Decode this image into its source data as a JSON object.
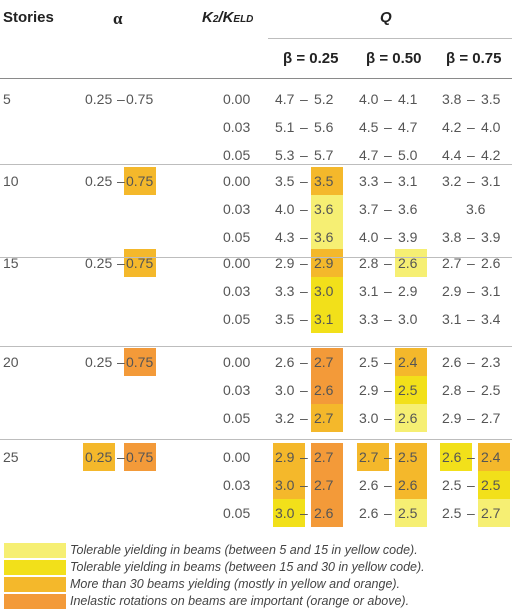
{
  "table": {
    "headers": {
      "stories": "Stories",
      "alpha": "α",
      "k_ratio_main": "K",
      "k_ratio_sub1": "2",
      "k_ratio_sep": "/K",
      "k_ratio_sub2": "ELD",
      "q": "Q",
      "beta1": "β = 0.25",
      "beta2": "β = 0.50",
      "beta3": "β = 0.75"
    },
    "groups": [
      {
        "stories": "5",
        "alpha": {
          "a": "0.25",
          "sep": "–",
          "b": "0.75"
        },
        "rows": [
          {
            "k": "0.00",
            "q": [
              [
                "4.7",
                "–",
                "5.2"
              ],
              [
                "4.0",
                "–",
                "4.1"
              ],
              [
                "3.8",
                "–",
                "3.5"
              ]
            ]
          },
          {
            "k": "0.03",
            "q": [
              [
                "5.1",
                "–",
                "5.6"
              ],
              [
                "4.5",
                "–",
                "4.7"
              ],
              [
                "4.2",
                "–",
                "4.0"
              ]
            ]
          },
          {
            "k": "0.05",
            "q": [
              [
                "5.3",
                "–",
                "5.7"
              ],
              [
                "4.7",
                "–",
                "5.0"
              ],
              [
                "4.4",
                "–",
                "4.2"
              ]
            ]
          }
        ]
      },
      {
        "stories": "10",
        "alpha": {
          "a": "0.25",
          "sep": "–",
          "b": "0.75"
        },
        "rows": [
          {
            "k": "0.00",
            "q": [
              [
                "3.5",
                "–",
                "3.5"
              ],
              [
                "3.3",
                "–",
                "3.1"
              ],
              [
                "3.2",
                "–",
                "3.1"
              ]
            ]
          },
          {
            "k": "0.03",
            "q": [
              [
                "4.0",
                "–",
                "3.6"
              ],
              [
                "3.7",
                "–",
                "3.6"
              ],
              [
                "3.6",
                "",
                ""
              ]
            ]
          },
          {
            "k": "0.05",
            "q": [
              [
                "4.3",
                "–",
                "3.6"
              ],
              [
                "4.0",
                "–",
                "3.9"
              ],
              [
                "3.8",
                "–",
                "3.9"
              ]
            ]
          }
        ]
      },
      {
        "stories": "15",
        "alpha": {
          "a": "0.25",
          "sep": "–",
          "b": "0.75"
        },
        "rows": [
          {
            "k": "0.00",
            "q": [
              [
                "2.9",
                "–",
                "2.9"
              ],
              [
                "2.8",
                "–",
                "2.6"
              ],
              [
                "2.7",
                "–",
                "2.6"
              ]
            ]
          },
          {
            "k": "0.03",
            "q": [
              [
                "3.3",
                "–",
                "3.0"
              ],
              [
                "3.1",
                "–",
                "2.9"
              ],
              [
                "2.9",
                "–",
                "3.1"
              ]
            ]
          },
          {
            "k": "0.05",
            "q": [
              [
                "3.5",
                "–",
                "3.1"
              ],
              [
                "3.3",
                "–",
                "3.0"
              ],
              [
                "3.1",
                "–",
                "3.4"
              ]
            ]
          }
        ]
      },
      {
        "stories": "20",
        "alpha": {
          "a": "0.25",
          "sep": "–",
          "b": "0.75"
        },
        "rows": [
          {
            "k": "0.00",
            "q": [
              [
                "2.6",
                "–",
                "2.7"
              ],
              [
                "2.5",
                "–",
                "2.4"
              ],
              [
                "2.6",
                "–",
                "2.3"
              ]
            ]
          },
          {
            "k": "0.03",
            "q": [
              [
                "3.0",
                "–",
                "2.6"
              ],
              [
                "2.9",
                "–",
                "2.5"
              ],
              [
                "2.8",
                "–",
                "2.5"
              ]
            ]
          },
          {
            "k": "0.05",
            "q": [
              [
                "3.2",
                "–",
                "2.7"
              ],
              [
                "3.0",
                "–",
                "2.6"
              ],
              [
                "2.9",
                "–",
                "2.7"
              ]
            ]
          }
        ]
      },
      {
        "stories": "25",
        "alpha": {
          "a": "0.25",
          "sep": "–",
          "b": "0.75"
        },
        "rows": [
          {
            "k": "0.00",
            "q": [
              [
                "2.9",
                "–",
                "2.7"
              ],
              [
                "2.7",
                "–",
                "2.5"
              ],
              [
                "2.6",
                "–",
                "2.4"
              ]
            ]
          },
          {
            "k": "0.03",
            "q": [
              [
                "3.0",
                "–",
                "2.7"
              ],
              [
                "2.6",
                "–",
                "2.6"
              ],
              [
                "2.5",
                "–",
                "2.5"
              ]
            ]
          },
          {
            "k": "0.05",
            "q": [
              [
                "3.0",
                "–",
                "2.6"
              ],
              [
                "2.6",
                "–",
                "2.5"
              ],
              [
                "2.5",
                "–",
                "2.7"
              ]
            ]
          }
        ]
      }
    ]
  },
  "colors": {
    "light_yellow": "#f6ef73",
    "yellow": "#f2e01a",
    "light_orange": "#f4b82b",
    "orange": "#f39a39"
  },
  "legend": [
    {
      "color": "#f6ef73",
      "text": "Tolerable yielding in beams (between 5 and 15 in yellow code)."
    },
    {
      "color": "#f2e01a",
      "text": "Tolerable yielding in beams (between 15 and 30 in yellow code)."
    },
    {
      "color": "#f4b82b",
      "text": "More than 30 beams yielding (mostly in yellow and orange)."
    },
    {
      "color": "#f39a39",
      "text": "Inelastic rotations on beams are important (orange or above)."
    }
  ]
}
